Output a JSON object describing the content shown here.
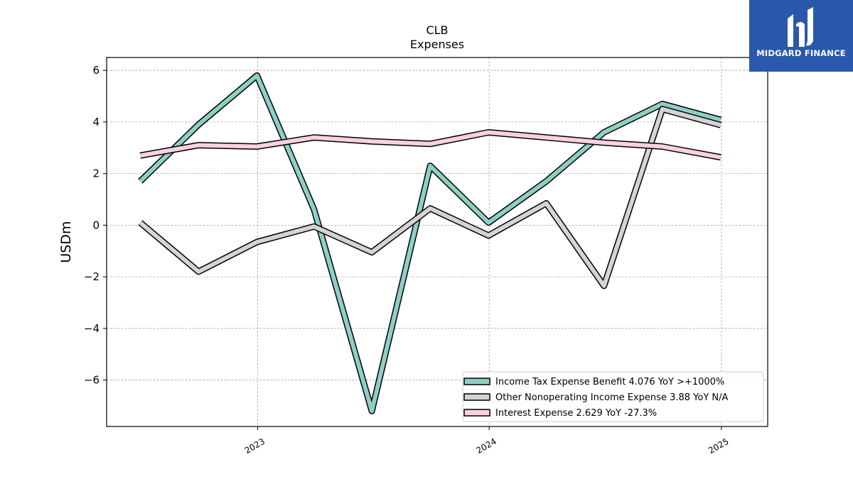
{
  "chart_data": {
    "type": "line",
    "title": "CLB",
    "subtitle": "Expenses",
    "ylabel": "USDm",
    "xlabel": "",
    "ylim": [
      -7.8,
      6.5
    ],
    "yticks": [
      -6,
      -4,
      -2,
      0,
      2,
      4,
      6
    ],
    "ytick_labels": [
      "−6",
      "−4",
      "−2",
      "0",
      "2",
      "4",
      "6"
    ],
    "xlim": [
      "2022-05-08",
      "2025-03-15"
    ],
    "xticks": [
      "2023-01-01",
      "2024-01-01",
      "2025-01-01"
    ],
    "xtick_labels": [
      "2023",
      "2024",
      "2025"
    ],
    "grid": true,
    "legend_position": "lower-right",
    "x": [
      "2022-06-30",
      "2022-09-30",
      "2022-12-31",
      "2023-03-31",
      "2023-06-30",
      "2023-09-30",
      "2023-12-31",
      "2024-03-31",
      "2024-06-30",
      "2024-09-30",
      "2024-12-31"
    ],
    "series": [
      {
        "name": "Income Tax Expense Benefit  4.076 YoY >+1000%",
        "color": "#8ecfc4",
        "values": [
          1.7,
          3.9,
          5.8,
          0.6,
          -7.2,
          2.3,
          0.1,
          1.7,
          3.6,
          4.7,
          4.08
        ]
      },
      {
        "name": "Other Nonoperating Income Expense  3.88 YoY N/A",
        "color": "#d4d4d4",
        "values": [
          0.1,
          -1.8,
          -0.65,
          -0.05,
          -1.05,
          0.65,
          -0.4,
          0.85,
          -2.35,
          4.5,
          3.88
        ]
      },
      {
        "name": "Interest Expense  2.629 YoY -27.3%",
        "color": "#fcd0e2",
        "values": [
          2.7,
          3.1,
          3.05,
          3.4,
          3.25,
          3.15,
          3.6,
          3.4,
          3.2,
          3.05,
          2.63
        ]
      }
    ]
  },
  "logo": {
    "text": "MIDGARD FINANCE",
    "bg_color": "#2a58ac"
  }
}
